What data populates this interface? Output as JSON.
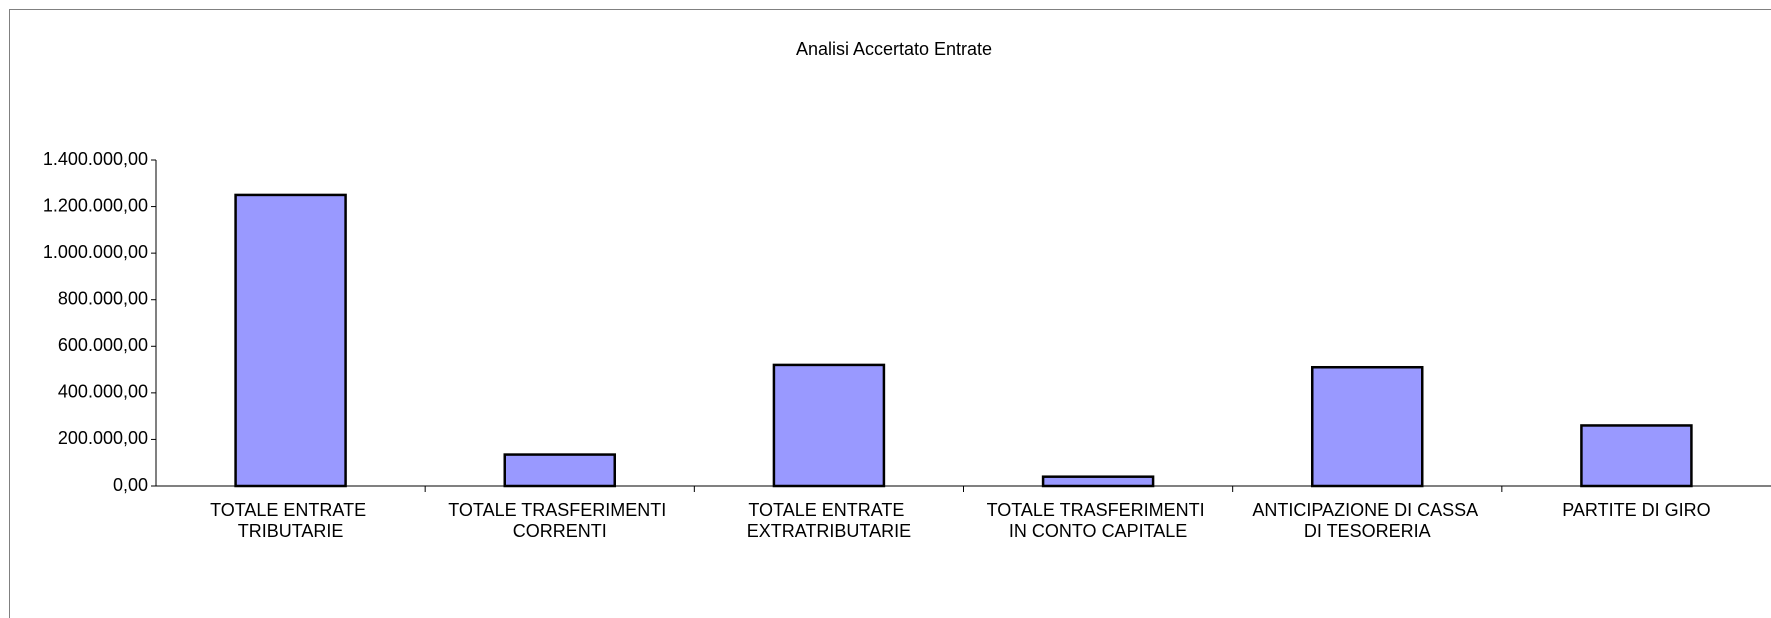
{
  "chart_data": {
    "type": "bar",
    "title": "Analisi Accertato Entrate",
    "categories": [
      "TOTALE ENTRATE TRIBUTARIE",
      "TOTALE TRASFERIMENTI CORRENTI",
      "TOTALE ENTRATE EXTRATRIBUTARIE",
      "TOTALE TRASFERIMENTI IN CONTO CAPITALE",
      "ANTICIPAZIONE DI CASSA DI TESORERIA",
      "PARTITE DI GIRO"
    ],
    "values": [
      1250000,
      135000,
      520000,
      40000,
      510000,
      260000
    ],
    "color": "#9999ff",
    "ylim": [
      0,
      1400000
    ],
    "yticks": [
      {
        "value": 0,
        "label": "0,00"
      },
      {
        "value": 200000,
        "label": "200.000,00"
      },
      {
        "value": 400000,
        "label": "400.000,00"
      },
      {
        "value": 600000,
        "label": "600.000,00"
      },
      {
        "value": 800000,
        "label": "800.000,00"
      },
      {
        "value": 1000000,
        "label": "1.000.000,00"
      },
      {
        "value": 1200000,
        "label": "1.200.000,00"
      },
      {
        "value": 1400000,
        "label": "1.400.000,00"
      }
    ],
    "grid": false
  }
}
